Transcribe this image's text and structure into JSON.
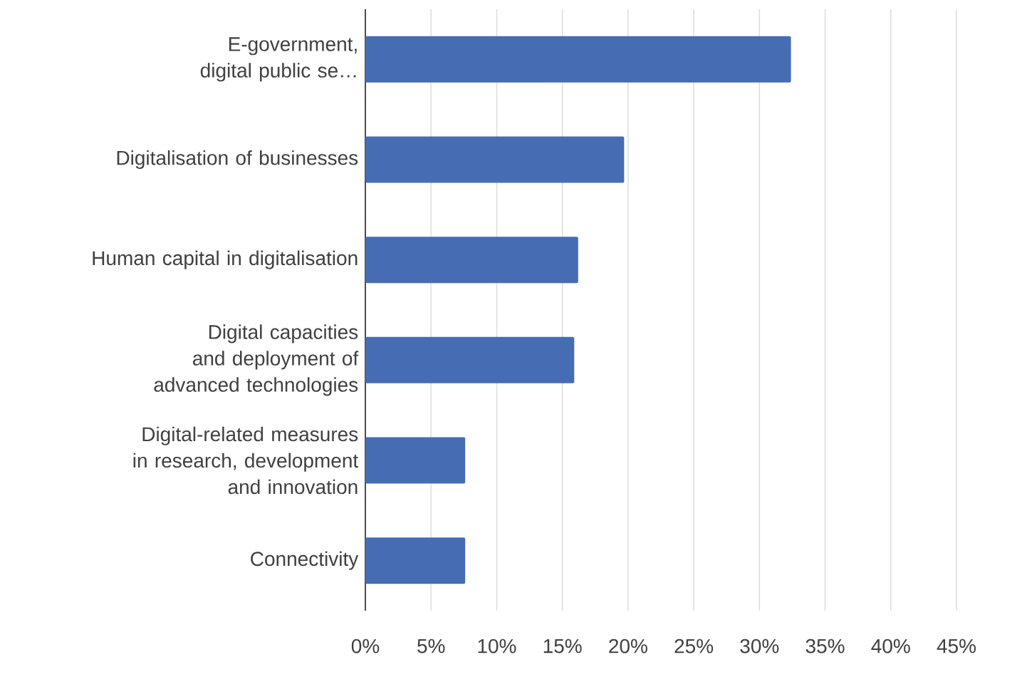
{
  "chart_data": {
    "type": "bar",
    "orientation": "horizontal",
    "categories": [
      "E-government, digital public se…",
      "Digitalisation of businesses",
      "Human capital in digitalisation",
      "Digital capacities and deployment of advanced technologies",
      "Digital-related measures in research, development and innovation",
      "Connectivity"
    ],
    "values": [
      32.4,
      19.7,
      16.2,
      15.9,
      7.6,
      7.6
    ],
    "color": "#466cb3",
    "xlim": [
      0,
      45
    ],
    "xticks": [
      {
        "value": 0,
        "label": "0%"
      },
      {
        "value": 5,
        "label": "5%"
      },
      {
        "value": 10,
        "label": "10%"
      },
      {
        "value": 15,
        "label": "15%"
      },
      {
        "value": 20,
        "label": "20%"
      },
      {
        "value": 25,
        "label": "25%"
      },
      {
        "value": 30,
        "label": "30%"
      },
      {
        "value": 35,
        "label": "35%"
      },
      {
        "value": 40,
        "label": "40%"
      },
      {
        "value": 45,
        "label": "45%"
      }
    ],
    "grid": "x"
  }
}
